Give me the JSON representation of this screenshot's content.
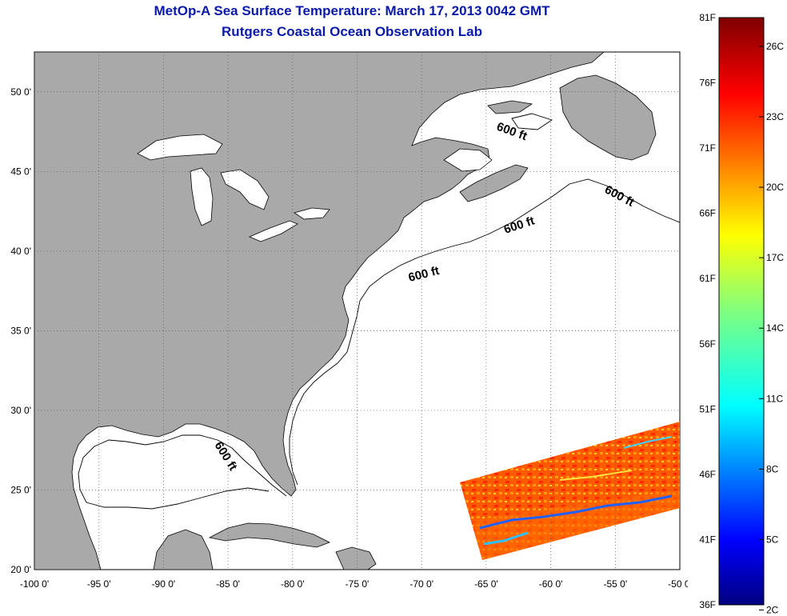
{
  "title": {
    "line1": "MetOp-A Sea Surface Temperature:  March 17, 2013 0042 GMT",
    "line2": "Rutgers Coastal Ocean Observation Lab"
  },
  "map": {
    "lon_range": [
      -100,
      -50
    ],
    "lat_range": [
      20,
      52.5
    ],
    "x_ticks": [
      "-100 0'",
      "-95 0'",
      "-90 0'",
      "-85 0'",
      "-80 0'",
      "-75 0'",
      "-70 0'",
      "-65 0'",
      "-60 0'",
      "-55 0'",
      "-50 0'"
    ],
    "y_ticks": [
      "20 0'",
      "25 0'",
      "30 0'",
      "35 0'",
      "40 0'",
      "45 0'",
      "50 0'"
    ],
    "grid": "dotted",
    "contour_labels": [
      "600 ft",
      "600 ft",
      "600 ft",
      "600 ft",
      "600 ft"
    ],
    "land_color": "#a9a9a9",
    "water_color": "#ffffff"
  },
  "colorbar": {
    "f_labels": [
      "81F",
      "76F",
      "71F",
      "66F",
      "61F",
      "56F",
      "51F",
      "46F",
      "41F",
      "36F"
    ],
    "c_labels": [
      "26C",
      "23C",
      "20C",
      "17C",
      "14C",
      "11C",
      "8C",
      "5C",
      "2C"
    ],
    "colormap": "jet"
  }
}
